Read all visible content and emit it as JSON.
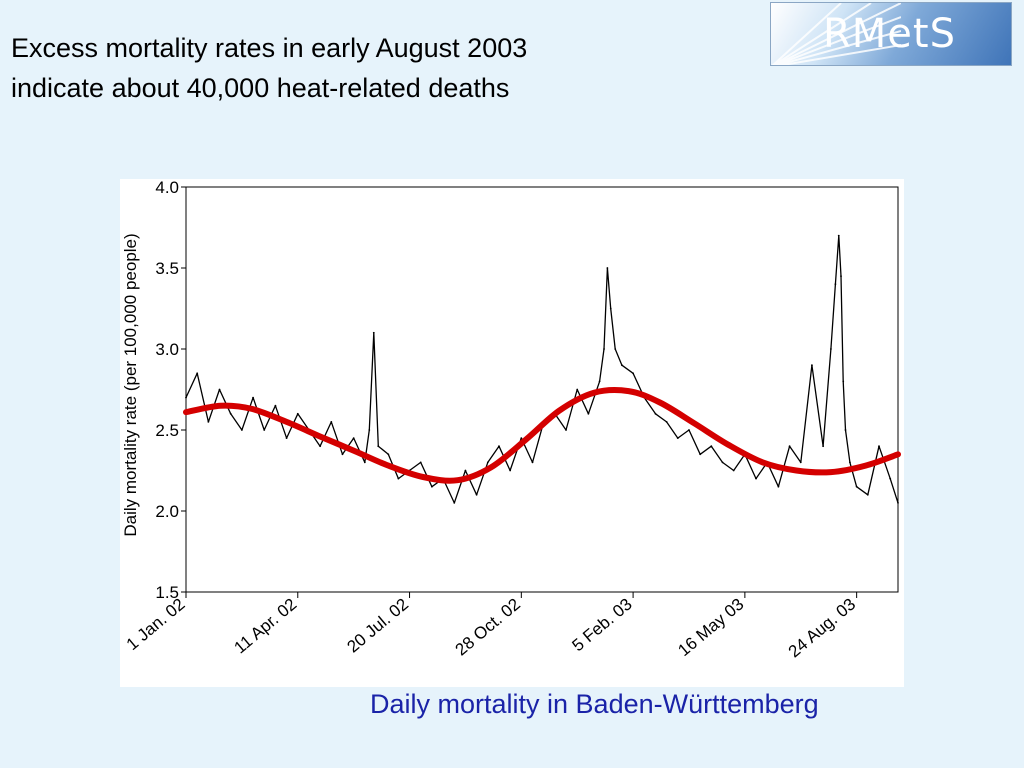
{
  "slide": {
    "title_lines": [
      "Excess mortality rates in early August 2003",
      "indicate about 40,000 heat-related deaths"
    ],
    "caption": "Daily mortality in Baden-Württemberg"
  },
  "logo": {
    "text": "RMetS"
  },
  "colors": {
    "background": "#e6f3fb",
    "caption": "#1a23a8",
    "daily_series": "#000000",
    "trend_series": "#d40000"
  },
  "chart_data": {
    "type": "line",
    "title": "",
    "xlabel": "",
    "ylabel": "Daily mortality rate (per 100,000 people)",
    "ylim": [
      1.5,
      4.0
    ],
    "yticks": [
      1.5,
      2.0,
      2.5,
      3.0,
      3.5,
      4.0
    ],
    "ytick_labels": [
      "1.5",
      "2.0",
      "2.5",
      "3.0",
      "3.5",
      "4.0"
    ],
    "xlim": [
      "2002-01-01",
      "2003-09-30"
    ],
    "xticks": [
      "2002-01-01",
      "2002-04-11",
      "2002-07-20",
      "2002-10-28",
      "2003-02-05",
      "2003-05-16",
      "2003-08-24"
    ],
    "xtick_labels": [
      "1 Jan. 02",
      "11 Apr. 02",
      "20 Jul. 02",
      "28 Oct. 02",
      "5 Feb. 03",
      "16 May 03",
      "24 Aug. 03"
    ],
    "grid": false,
    "legend": "none",
    "series": [
      {
        "style": "thin black line",
        "x": [
          "2002-01-01",
          "2002-01-11",
          "2002-01-21",
          "2002-01-31",
          "2002-02-10",
          "2002-02-20",
          "2002-03-02",
          "2002-03-12",
          "2002-03-22",
          "2002-04-01",
          "2002-04-11",
          "2002-04-21",
          "2002-05-01",
          "2002-05-11",
          "2002-05-21",
          "2002-05-31",
          "2002-06-10",
          "2002-06-14",
          "2002-06-18",
          "2002-06-22",
          "2002-07-01",
          "2002-07-10",
          "2002-07-20",
          "2002-07-30",
          "2002-08-09",
          "2002-08-19",
          "2002-08-29",
          "2002-09-08",
          "2002-09-18",
          "2002-09-28",
          "2002-10-08",
          "2002-10-18",
          "2002-10-28",
          "2002-11-07",
          "2002-11-17",
          "2002-11-27",
          "2002-12-07",
          "2002-12-17",
          "2002-12-27",
          "2003-01-06",
          "2003-01-10",
          "2003-01-13",
          "2003-01-16",
          "2003-01-20",
          "2003-01-26",
          "2003-02-05",
          "2003-02-15",
          "2003-02-25",
          "2003-03-07",
          "2003-03-17",
          "2003-03-27",
          "2003-04-06",
          "2003-04-16",
          "2003-04-26",
          "2003-05-06",
          "2003-05-16",
          "2003-05-26",
          "2003-06-05",
          "2003-06-15",
          "2003-06-25",
          "2003-07-05",
          "2003-07-15",
          "2003-07-25",
          "2003-08-01",
          "2003-08-05",
          "2003-08-08",
          "2003-08-10",
          "2003-08-12",
          "2003-08-14",
          "2003-08-18",
          "2003-08-24",
          "2003-09-03",
          "2003-09-13",
          "2003-09-23",
          "2003-09-30"
        ],
        "values": [
          2.7,
          2.85,
          2.55,
          2.75,
          2.6,
          2.5,
          2.7,
          2.5,
          2.65,
          2.45,
          2.6,
          2.5,
          2.4,
          2.55,
          2.35,
          2.45,
          2.3,
          2.5,
          3.1,
          2.4,
          2.35,
          2.2,
          2.25,
          2.3,
          2.15,
          2.2,
          2.05,
          2.25,
          2.1,
          2.3,
          2.4,
          2.25,
          2.45,
          2.3,
          2.55,
          2.6,
          2.5,
          2.75,
          2.6,
          2.8,
          3.0,
          3.5,
          3.25,
          3.0,
          2.9,
          2.85,
          2.7,
          2.6,
          2.55,
          2.45,
          2.5,
          2.35,
          2.4,
          2.3,
          2.25,
          2.35,
          2.2,
          2.3,
          2.15,
          2.4,
          2.3,
          2.9,
          2.4,
          3.0,
          3.4,
          3.7,
          3.45,
          2.8,
          2.5,
          2.3,
          2.15,
          2.1,
          2.4,
          2.2,
          2.05
        ]
      },
      {
        "style": "thick red smooth line",
        "x": [
          "2002-01-01",
          "2002-02-01",
          "2002-03-01",
          "2002-04-01",
          "2002-05-01",
          "2002-06-01",
          "2002-07-01",
          "2002-08-01",
          "2002-09-01",
          "2002-10-01",
          "2002-11-01",
          "2002-12-01",
          "2003-01-01",
          "2003-02-01",
          "2003-03-01",
          "2003-04-01",
          "2003-05-01",
          "2003-06-01",
          "2003-07-01",
          "2003-08-01",
          "2003-09-01",
          "2003-09-30"
        ],
        "values": [
          2.61,
          2.65,
          2.63,
          2.55,
          2.46,
          2.37,
          2.28,
          2.21,
          2.19,
          2.27,
          2.44,
          2.62,
          2.73,
          2.74,
          2.67,
          2.54,
          2.41,
          2.3,
          2.25,
          2.24,
          2.28,
          2.35
        ]
      }
    ]
  }
}
